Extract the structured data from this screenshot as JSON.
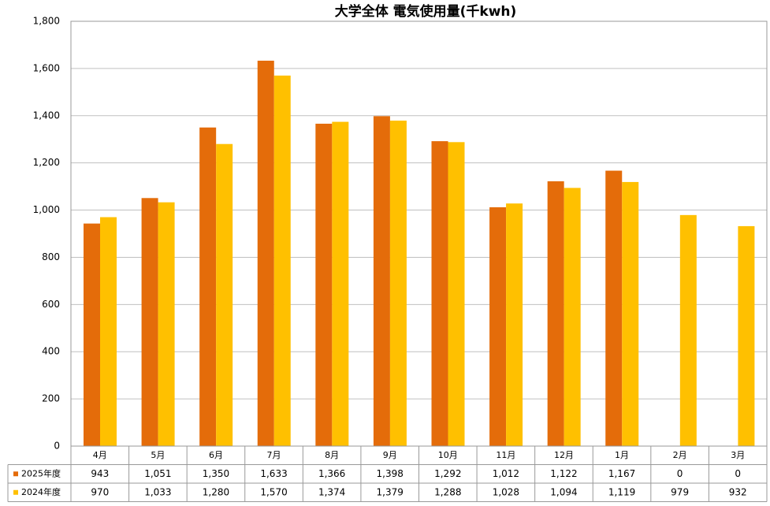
{
  "chart_data": {
    "type": "bar",
    "title": "大学全体 電気使用量(千kwh)",
    "categories": [
      "4月",
      "5月",
      "6月",
      "7月",
      "8月",
      "9月",
      "10月",
      "11月",
      "12月",
      "1月",
      "2月",
      "3月"
    ],
    "series": [
      {
        "name": "2025年度",
        "color": "#e46c0a",
        "values": [
          943,
          1051,
          1350,
          1633,
          1366,
          1398,
          1292,
          1012,
          1122,
          1167,
          0,
          0
        ],
        "value_labels": [
          "943",
          "1,051",
          "1,350",
          "1,633",
          "1,366",
          "1,398",
          "1,292",
          "1,012",
          "1,122",
          "1,167",
          "0",
          "0"
        ]
      },
      {
        "name": "2024年度",
        "color": "#ffc000",
        "values": [
          970,
          1033,
          1280,
          1570,
          1374,
          1379,
          1288,
          1028,
          1094,
          1119,
          979,
          932
        ],
        "value_labels": [
          "970",
          "1,033",
          "1,280",
          "1,570",
          "1,374",
          "1,379",
          "1,288",
          "1,028",
          "1,094",
          "1,119",
          "979",
          "932"
        ]
      }
    ],
    "ylim": [
      0,
      1800
    ],
    "yticks": [
      0,
      200,
      400,
      600,
      800,
      {
        "value": 1000,
        "label": "1,000"
      },
      {
        "value": 1200,
        "label": "1,200"
      },
      {
        "value": 1400,
        "label": "1,400"
      },
      {
        "value": 1600,
        "label": "1,600"
      },
      {
        "value": 1800,
        "label": "1,800"
      }
    ],
    "grid": true
  }
}
